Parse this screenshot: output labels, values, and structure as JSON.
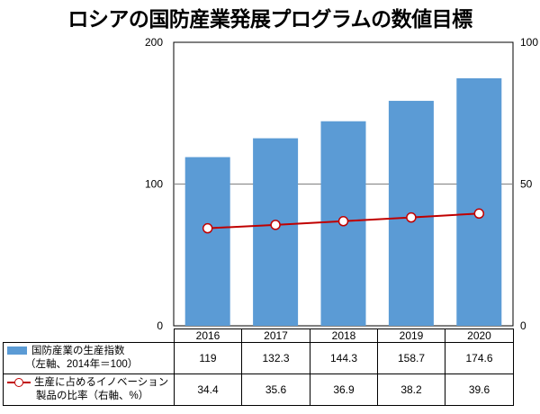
{
  "title": "ロシアの国防産業発展プログラムの数値目標",
  "colors": {
    "bar": "#5b9bd5",
    "line": "#c00000"
  },
  "chart_data": {
    "type": "bar",
    "categories": [
      "2016",
      "2017",
      "2018",
      "2019",
      "2020"
    ],
    "grid": true,
    "left_axis": {
      "ticks": [
        "0",
        "100",
        "200"
      ],
      "range": [
        0,
        200
      ]
    },
    "right_axis": {
      "ticks": [
        "0",
        "50",
        "100"
      ],
      "range": [
        0,
        100
      ]
    },
    "series": [
      {
        "type": "bar",
        "axis": "left",
        "label_line1": "国防産業の生産指数",
        "label_line2": "（左軸、2014年＝100）",
        "values": [
          119,
          132.3,
          144.3,
          158.7,
          174.6
        ],
        "value_labels": [
          "119",
          "132.3",
          "144.3",
          "158.7",
          "174.6"
        ]
      },
      {
        "type": "line",
        "axis": "right",
        "label_line1": "生産に占めるイノベーション",
        "label_line2": "製品の比率（右軸、%）",
        "values": [
          34.4,
          35.6,
          36.9,
          38.2,
          39.6
        ],
        "value_labels": [
          "34.4",
          "35.6",
          "36.9",
          "38.2",
          "39.6"
        ]
      }
    ]
  }
}
